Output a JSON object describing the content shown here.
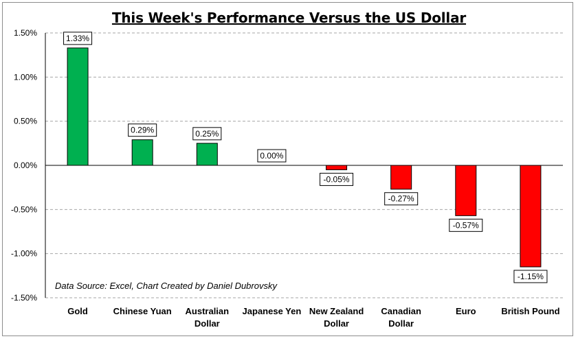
{
  "chart_data": {
    "type": "bar",
    "title": "This Week's Performance Versus the US Dollar",
    "categories": [
      "Gold",
      "Chinese Yuan",
      "Australian Dollar",
      "Japanese Yen",
      "New Zealand Dollar",
      "Canadian Dollar",
      "Euro",
      "British Pound"
    ],
    "category_lines": [
      [
        "Gold"
      ],
      [
        "Chinese Yuan"
      ],
      [
        "Australian",
        "Dollar"
      ],
      [
        "Japanese Yen"
      ],
      [
        "New Zealand",
        "Dollar"
      ],
      [
        "Canadian",
        "Dollar"
      ],
      [
        "Euro"
      ],
      [
        "British Pound"
      ]
    ],
    "values": [
      1.33,
      0.29,
      0.25,
      0.0,
      -0.05,
      -0.27,
      -0.57,
      -1.15
    ],
    "data_labels": [
      "1.33%",
      "0.29%",
      "0.25%",
      "0.00%",
      "-0.05%",
      "-0.27%",
      "-0.57%",
      "-1.15%"
    ],
    "ylim": [
      -1.5,
      1.5
    ],
    "yticks": [
      1.5,
      1.0,
      0.5,
      0.0,
      -0.5,
      -1.0,
      -1.5
    ],
    "ytick_labels": [
      "1.50%",
      "1.00%",
      "0.50%",
      "0.00%",
      "-0.50%",
      "-1.00%",
      "-1.50%"
    ],
    "grid": "horizontal-dashed",
    "legend": "none",
    "colors": {
      "positive": "#00b050",
      "negative": "#ff0000",
      "grid": "#a6a6a6",
      "axis": "#000000"
    },
    "annotation": "Data Source: Excel, Chart Created by Daniel Dubrovsky"
  }
}
